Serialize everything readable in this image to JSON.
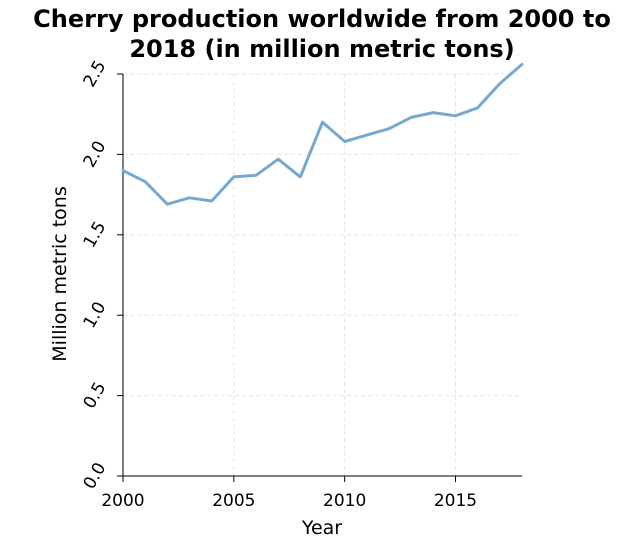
{
  "chart_data": {
    "type": "line",
    "title_lines": [
      "Cherry production worldwide from 2000 to",
      "2018 (in million metric tons)"
    ],
    "xlabel": "Year",
    "ylabel": "Million metric tons",
    "xlim": [
      2000,
      2018
    ],
    "ylim": [
      0,
      2.5
    ],
    "xticks": [
      2000,
      2005,
      2010,
      2015
    ],
    "yticks": [
      0.0,
      0.5,
      1.0,
      1.5,
      2.0,
      2.5
    ],
    "ytick_labels": [
      "0.0",
      "0.5",
      "1.0",
      "1.5",
      "2.0",
      "2.5"
    ],
    "grid": true,
    "series": [
      {
        "color": "#77a9cf",
        "x": [
          2000,
          2001,
          2002,
          2003,
          2004,
          2005,
          2006,
          2007,
          2008,
          2009,
          2010,
          2011,
          2012,
          2013,
          2014,
          2015,
          2016,
          2017,
          2018
        ],
        "values": [
          1.9,
          1.83,
          1.69,
          1.73,
          1.71,
          1.86,
          1.87,
          1.97,
          1.86,
          2.2,
          2.08,
          2.12,
          2.16,
          2.23,
          2.26,
          2.24,
          2.29,
          2.44,
          2.56
        ]
      }
    ]
  }
}
